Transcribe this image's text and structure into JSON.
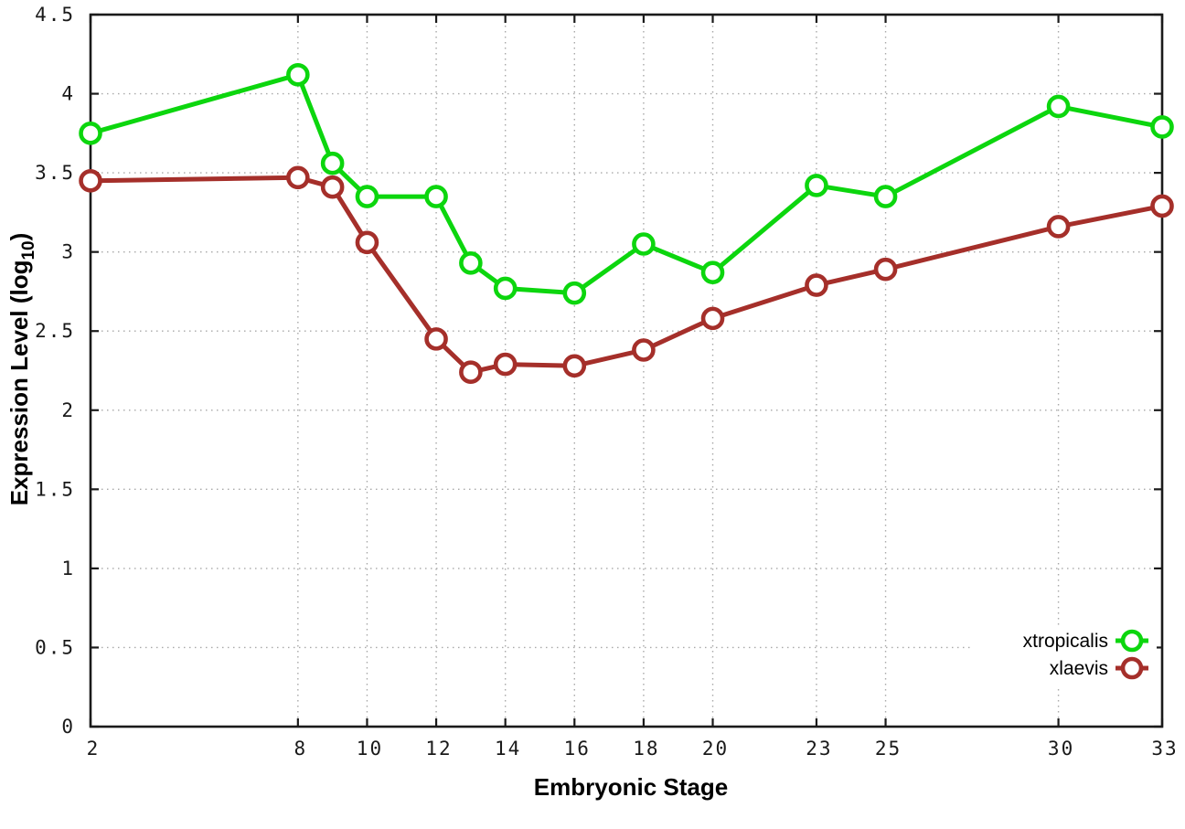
{
  "figure": {
    "background": "#ffffff",
    "border_color": "#1a1a1a",
    "grid_color": "#a8a8a8",
    "text_color": "#1a1a1a",
    "ylabel_parts": {
      "prefix": "Expression Level (log",
      "sub": "10",
      "suffix": ")"
    }
  },
  "chart_data": {
    "type": "line",
    "title": "",
    "xlabel": "Embryonic Stage",
    "ylabel": "Expression Level (log10)",
    "xlim": [
      2,
      33
    ],
    "ylim": [
      0,
      4.5
    ],
    "grid": true,
    "grid_style": "dotted",
    "legend_position": "bottom-right-inside",
    "marker": "open-circle",
    "xticks": [
      2,
      8,
      10,
      12,
      14,
      16,
      18,
      20,
      23,
      25,
      30,
      33
    ],
    "xticklabels": [
      "2",
      "8",
      "10",
      "12",
      "14",
      "16",
      "18",
      "20",
      "23",
      "25",
      "30",
      "33"
    ],
    "yticks": [
      0,
      0.5,
      1,
      1.5,
      2,
      2.5,
      3,
      3.5,
      4,
      4.5
    ],
    "yticklabels": [
      "0",
      "0.5",
      "1",
      "1.5",
      "2",
      "2.5",
      "3",
      "3.5",
      "4",
      "4.5"
    ],
    "x": [
      2,
      8,
      9,
      10,
      12,
      13,
      14,
      16,
      18,
      20,
      23,
      25,
      30,
      33
    ],
    "series": [
      {
        "name": "xtropicalis",
        "color": "#0cd60e",
        "values": [
          3.75,
          4.12,
          3.56,
          3.35,
          3.35,
          2.93,
          2.77,
          2.74,
          3.05,
          2.87,
          3.42,
          3.35,
          3.92,
          3.79
        ]
      },
      {
        "name": "xlaevis",
        "color": "#a52f2a",
        "values": [
          3.45,
          3.47,
          3.41,
          3.06,
          2.45,
          2.24,
          2.29,
          2.28,
          2.38,
          2.58,
          2.79,
          2.89,
          3.16,
          3.29
        ]
      }
    ]
  }
}
